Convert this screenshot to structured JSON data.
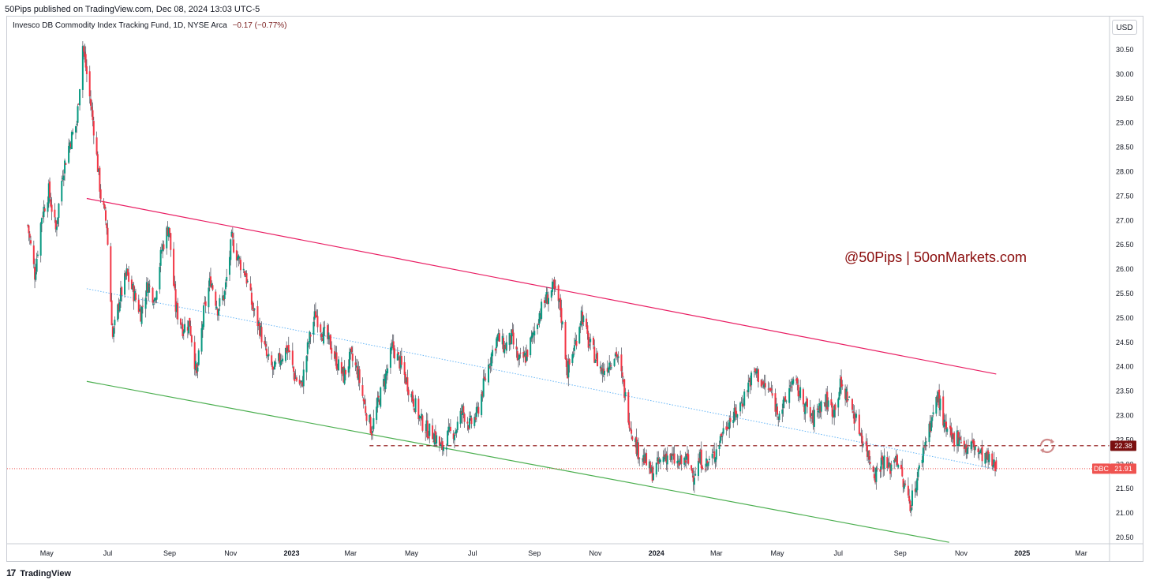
{
  "header": {
    "published_text": "50Pips published on TradingView.com, Dec 08, 2024 13:03 UTC-5"
  },
  "legend": {
    "instrument": "Invesco DB Commodity Index Tracking Fund, 1D, NYSE Arca",
    "change": "−0.17 (−0.77%)"
  },
  "currency_button": "USD",
  "footer": {
    "logo_glyph": "17",
    "brand": "TradingView"
  },
  "colors": {
    "up_candle": "#089981",
    "down_candle": "#f23645",
    "candle_wick": "#5d606b",
    "resistance_line": "#e91e63",
    "support_line": "#4caf50",
    "mid_line": "#64b5f6",
    "horizontal_level": "#8b0d0d",
    "last_price_line": "#ef5350",
    "watermark": "#8b0d0d"
  },
  "chart_data": {
    "type": "candlestick",
    "symbol": "DBC",
    "timeframe": "1D",
    "x_tick_labels": [
      "May",
      "Jul",
      "Sep",
      "Nov",
      "2023",
      "Mar",
      "May",
      "Jul",
      "Sep",
      "Nov",
      "2024",
      "Mar",
      "May",
      "Jul",
      "Sep",
      "Nov",
      "2025",
      "Mar"
    ],
    "y_tick_labels": [
      "30.50",
      "30.00",
      "29.50",
      "29.00",
      "28.50",
      "28.00",
      "27.50",
      "27.00",
      "26.50",
      "26.00",
      "25.50",
      "25.00",
      "24.50",
      "24.00",
      "23.50",
      "23.00",
      "22.50",
      "22.00",
      "21.50",
      "21.00",
      "20.50"
    ],
    "ylim": [
      20.4,
      31.0
    ],
    "y_axis_side": "right",
    "close_path": [
      {
        "date": "2022-04-12",
        "close": 26.9
      },
      {
        "date": "2022-04-19",
        "close": 25.9
      },
      {
        "date": "2022-04-26",
        "close": 27.1
      },
      {
        "date": "2022-05-03",
        "close": 27.6
      },
      {
        "date": "2022-05-10",
        "close": 26.8
      },
      {
        "date": "2022-05-17",
        "close": 28.0
      },
      {
        "date": "2022-05-24",
        "close": 28.6
      },
      {
        "date": "2022-05-31",
        "close": 29.0
      },
      {
        "date": "2022-06-06",
        "close": 30.6
      },
      {
        "date": "2022-06-10",
        "close": 30.0
      },
      {
        "date": "2022-06-17",
        "close": 28.9
      },
      {
        "date": "2022-06-24",
        "close": 27.5
      },
      {
        "date": "2022-06-30",
        "close": 26.9
      },
      {
        "date": "2022-07-06",
        "close": 24.6
      },
      {
        "date": "2022-07-13",
        "close": 25.4
      },
      {
        "date": "2022-07-20",
        "close": 25.9
      },
      {
        "date": "2022-07-27",
        "close": 25.5
      },
      {
        "date": "2022-08-03",
        "close": 25.1
      },
      {
        "date": "2022-08-10",
        "close": 25.7
      },
      {
        "date": "2022-08-17",
        "close": 25.4
      },
      {
        "date": "2022-08-24",
        "close": 26.4
      },
      {
        "date": "2022-08-31",
        "close": 26.9
      },
      {
        "date": "2022-09-07",
        "close": 25.2
      },
      {
        "date": "2022-09-14",
        "close": 24.8
      },
      {
        "date": "2022-09-21",
        "close": 24.9
      },
      {
        "date": "2022-09-28",
        "close": 23.8
      },
      {
        "date": "2022-10-05",
        "close": 25.1
      },
      {
        "date": "2022-10-12",
        "close": 25.8
      },
      {
        "date": "2022-10-19",
        "close": 25.2
      },
      {
        "date": "2022-10-26",
        "close": 25.5
      },
      {
        "date": "2022-11-02",
        "close": 26.6
      },
      {
        "date": "2022-11-09",
        "close": 26.2
      },
      {
        "date": "2022-11-16",
        "close": 25.9
      },
      {
        "date": "2022-11-23",
        "close": 25.2
      },
      {
        "date": "2022-11-30",
        "close": 24.8
      },
      {
        "date": "2022-12-07",
        "close": 24.2
      },
      {
        "date": "2022-12-14",
        "close": 23.9
      },
      {
        "date": "2022-12-21",
        "close": 24.2
      },
      {
        "date": "2022-12-28",
        "close": 24.4
      },
      {
        "date": "2023-01-04",
        "close": 23.8
      },
      {
        "date": "2023-01-11",
        "close": 23.6
      },
      {
        "date": "2023-01-18",
        "close": 24.5
      },
      {
        "date": "2023-01-25",
        "close": 25.1
      },
      {
        "date": "2023-02-01",
        "close": 24.7
      },
      {
        "date": "2023-02-08",
        "close": 24.5
      },
      {
        "date": "2023-02-15",
        "close": 24.1
      },
      {
        "date": "2023-02-22",
        "close": 23.8
      },
      {
        "date": "2023-03-01",
        "close": 24.2
      },
      {
        "date": "2023-03-08",
        "close": 23.9
      },
      {
        "date": "2023-03-15",
        "close": 23.2
      },
      {
        "date": "2023-03-22",
        "close": 22.7
      },
      {
        "date": "2023-03-29",
        "close": 23.3
      },
      {
        "date": "2023-04-05",
        "close": 23.8
      },
      {
        "date": "2023-04-12",
        "close": 24.4
      },
      {
        "date": "2023-04-19",
        "close": 24.1
      },
      {
        "date": "2023-04-26",
        "close": 23.7
      },
      {
        "date": "2023-05-03",
        "close": 23.3
      },
      {
        "date": "2023-05-10",
        "close": 22.9
      },
      {
        "date": "2023-05-17",
        "close": 22.7
      },
      {
        "date": "2023-05-24",
        "close": 22.6
      },
      {
        "date": "2023-05-31",
        "close": 22.3
      },
      {
        "date": "2023-06-07",
        "close": 22.6
      },
      {
        "date": "2023-06-14",
        "close": 22.7
      },
      {
        "date": "2023-06-21",
        "close": 23.1
      },
      {
        "date": "2023-06-28",
        "close": 22.8
      },
      {
        "date": "2023-07-05",
        "close": 23.0
      },
      {
        "date": "2023-07-12",
        "close": 23.6
      },
      {
        "date": "2023-07-19",
        "close": 24.2
      },
      {
        "date": "2023-07-26",
        "close": 24.6
      },
      {
        "date": "2023-08-02",
        "close": 24.4
      },
      {
        "date": "2023-08-09",
        "close": 24.6
      },
      {
        "date": "2023-08-16",
        "close": 24.1
      },
      {
        "date": "2023-08-23",
        "close": 24.2
      },
      {
        "date": "2023-08-30",
        "close": 24.6
      },
      {
        "date": "2023-09-06",
        "close": 25.1
      },
      {
        "date": "2023-09-13",
        "close": 25.4
      },
      {
        "date": "2023-09-20",
        "close": 25.6
      },
      {
        "date": "2023-09-27",
        "close": 25.2
      },
      {
        "date": "2023-10-04",
        "close": 23.9
      },
      {
        "date": "2023-10-11",
        "close": 24.4
      },
      {
        "date": "2023-10-18",
        "close": 25.1
      },
      {
        "date": "2023-10-25",
        "close": 24.5
      },
      {
        "date": "2023-11-01",
        "close": 24.2
      },
      {
        "date": "2023-11-08",
        "close": 23.9
      },
      {
        "date": "2023-11-15",
        "close": 24.1
      },
      {
        "date": "2023-11-22",
        "close": 24.3
      },
      {
        "date": "2023-11-29",
        "close": 23.6
      },
      {
        "date": "2023-12-06",
        "close": 22.8
      },
      {
        "date": "2023-12-13",
        "close": 22.3
      },
      {
        "date": "2023-12-20",
        "close": 22.1
      },
      {
        "date": "2023-12-27",
        "close": 21.8
      },
      {
        "date": "2024-01-03",
        "close": 22.0
      },
      {
        "date": "2024-01-10",
        "close": 22.2
      },
      {
        "date": "2024-01-17",
        "close": 22.1
      },
      {
        "date": "2024-01-24",
        "close": 22.0
      },
      {
        "date": "2024-01-31",
        "close": 22.1
      },
      {
        "date": "2024-02-07",
        "close": 21.8
      },
      {
        "date": "2024-02-14",
        "close": 22.1
      },
      {
        "date": "2024-02-21",
        "close": 22.0
      },
      {
        "date": "2024-02-28",
        "close": 22.2
      },
      {
        "date": "2024-03-06",
        "close": 22.6
      },
      {
        "date": "2024-03-13",
        "close": 22.9
      },
      {
        "date": "2024-03-20",
        "close": 23.0
      },
      {
        "date": "2024-03-27",
        "close": 23.3
      },
      {
        "date": "2024-04-03",
        "close": 23.7
      },
      {
        "date": "2024-04-10",
        "close": 23.9
      },
      {
        "date": "2024-04-17",
        "close": 23.6
      },
      {
        "date": "2024-04-24",
        "close": 23.5
      },
      {
        "date": "2024-05-01",
        "close": 23.1
      },
      {
        "date": "2024-05-08",
        "close": 23.2
      },
      {
        "date": "2024-05-15",
        "close": 23.7
      },
      {
        "date": "2024-05-22",
        "close": 23.5
      },
      {
        "date": "2024-05-29",
        "close": 23.2
      },
      {
        "date": "2024-06-05",
        "close": 22.9
      },
      {
        "date": "2024-06-12",
        "close": 23.2
      },
      {
        "date": "2024-06-19",
        "close": 23.3
      },
      {
        "date": "2024-06-26",
        "close": 23.1
      },
      {
        "date": "2024-07-03",
        "close": 23.6
      },
      {
        "date": "2024-07-10",
        "close": 23.4
      },
      {
        "date": "2024-07-17",
        "close": 23.0
      },
      {
        "date": "2024-07-24",
        "close": 22.6
      },
      {
        "date": "2024-07-31",
        "close": 22.2
      },
      {
        "date": "2024-08-07",
        "close": 21.8
      },
      {
        "date": "2024-08-14",
        "close": 22.1
      },
      {
        "date": "2024-08-21",
        "close": 21.9
      },
      {
        "date": "2024-08-28",
        "close": 22.2
      },
      {
        "date": "2024-09-04",
        "close": 21.6
      },
      {
        "date": "2024-09-11",
        "close": 21.2
      },
      {
        "date": "2024-09-18",
        "close": 21.7
      },
      {
        "date": "2024-09-25",
        "close": 22.4
      },
      {
        "date": "2024-10-02",
        "close": 22.9
      },
      {
        "date": "2024-10-09",
        "close": 23.4
      },
      {
        "date": "2024-10-16",
        "close": 22.7
      },
      {
        "date": "2024-10-23",
        "close": 22.5
      },
      {
        "date": "2024-10-30",
        "close": 22.6
      },
      {
        "date": "2024-11-06",
        "close": 22.3
      },
      {
        "date": "2024-11-13",
        "close": 22.4
      },
      {
        "date": "2024-11-20",
        "close": 22.2
      },
      {
        "date": "2024-11-27",
        "close": 22.1
      },
      {
        "date": "2024-12-06",
        "close": 21.91
      }
    ],
    "drawings": [
      {
        "name": "upper-channel-line",
        "kind": "trendline",
        "color": "resistance",
        "from": {
          "date": "2022-06-10",
          "price": 27.45
        },
        "to": {
          "date": "2024-12-06",
          "price": 23.85
        }
      },
      {
        "name": "middle-channel-line",
        "kind": "trendline-dotted",
        "color": "mid",
        "from": {
          "date": "2022-06-10",
          "price": 25.6
        },
        "to": {
          "date": "2024-12-06",
          "price": 21.9
        }
      },
      {
        "name": "lower-channel-line",
        "kind": "trendline",
        "color": "support",
        "from": {
          "date": "2022-06-10",
          "price": 23.7
        },
        "to": {
          "date": "2024-10-20",
          "price": 20.4
        }
      },
      {
        "name": "horizontal-level",
        "kind": "horizontal-dashed",
        "color": "level",
        "from": {
          "date": "2023-03-20",
          "price": 22.38
        },
        "to_axis": true
      },
      {
        "name": "last-price-line",
        "kind": "horizontal-dotted",
        "color": "last",
        "price": 21.91
      }
    ],
    "price_labels": [
      {
        "name": "level-price-label",
        "text": "22.38",
        "value": 22.38,
        "color": "#7a0f0f"
      },
      {
        "name": "last-price-label",
        "ticker": "DBC",
        "text": "21.91",
        "value": 21.91,
        "color": "#ef5350"
      }
    ],
    "watermark_text": "@50Pips | 50onMarkets.com"
  }
}
